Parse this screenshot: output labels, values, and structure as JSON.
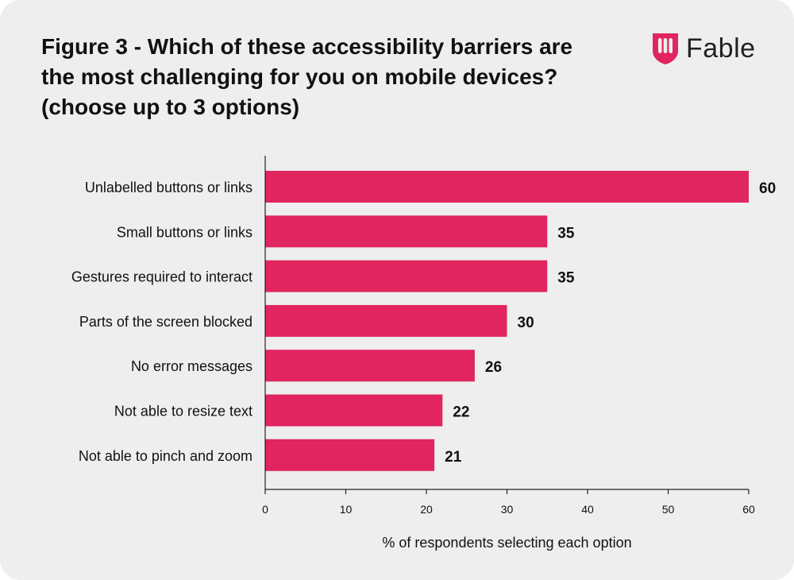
{
  "title_lines": [
    "Figure 3 - Which of these accessibility barriers are",
    "the most challenging for you on mobile devices?",
    "(choose up to 3 options)"
  ],
  "logo": {
    "text": "Fable",
    "color": "#e0255f"
  },
  "chart_data": {
    "type": "bar",
    "orientation": "horizontal",
    "title": "Figure 3 - Which of these accessibility barriers are the most challenging for you on mobile devices? (choose up to 3 options)",
    "categories": [
      "Unlabelled buttons or links",
      "Small buttons or links",
      "Gestures required to interact",
      "Parts of the screen blocked",
      "No error messages",
      "Not able to resize text",
      "Not able to pinch and zoom"
    ],
    "values": [
      60,
      35,
      35,
      30,
      26,
      22,
      21
    ],
    "xlabel": "% of respondents selecting each option",
    "ylabel": "",
    "xlim": [
      0,
      60
    ],
    "xticks": [
      0,
      10,
      20,
      30,
      40,
      50,
      60
    ],
    "grid": false,
    "bar_color": "#e0255f",
    "data_labels": true
  }
}
